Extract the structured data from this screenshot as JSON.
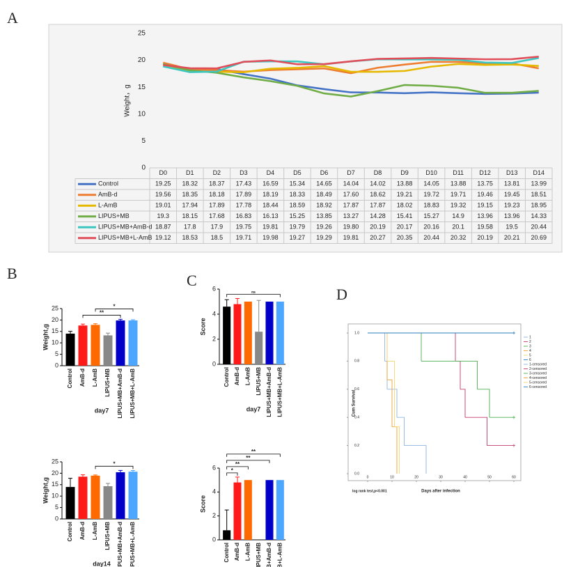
{
  "chart_data": [
    {
      "type": "line",
      "panel": "A",
      "ylabel": "Weight，g",
      "categories": [
        "D0",
        "D1",
        "D2",
        "D3",
        "D4",
        "D5",
        "D6",
        "D7",
        "D8",
        "D9",
        "D10",
        "D11",
        "D12",
        "D13",
        "D14"
      ],
      "ylim": [
        0,
        25
      ],
      "yticks": [
        0,
        5,
        10,
        15,
        20,
        25
      ],
      "grid": false,
      "series": [
        {
          "name": "Control",
          "color": "#4472c4",
          "values": [
            19.25,
            18.32,
            18.37,
            17.43,
            16.59,
            15.34,
            14.65,
            14.04,
            14.02,
            13.88,
            14.05,
            13.88,
            13.75,
            13.81,
            13.99
          ]
        },
        {
          "name": "AmB-d",
          "color": "#ed7d31",
          "values": [
            19.56,
            18.35,
            18.18,
            17.89,
            18.19,
            18.33,
            18.49,
            17.6,
            18.62,
            19.21,
            19.72,
            19.71,
            19.46,
            19.45,
            18.51
          ],
          "value_labels": [
            "19.56",
            "18.35",
            "18.18",
            "17.89",
            "18.19",
            "18.33",
            "18.49",
            "17.60",
            "18.62",
            "19.21",
            "19.72",
            "19.71",
            "19.46",
            "19.45",
            "18.51"
          ]
        },
        {
          "name": "L-AmB",
          "color": "#e6b800",
          "values": [
            19.01,
            17.94,
            17.89,
            17.78,
            18.44,
            18.59,
            18.92,
            17.87,
            17.87,
            18.02,
            18.83,
            19.32,
            19.15,
            19.23,
            18.95
          ]
        },
        {
          "name": "LIPUS+MB",
          "color": "#70ad47",
          "values": [
            19.3,
            18.15,
            17.68,
            16.83,
            16.13,
            15.25,
            13.85,
            13.27,
            14.28,
            15.41,
            15.27,
            14.9,
            13.96,
            13.96,
            14.33
          ]
        },
        {
          "name": "LIPUS+MB+AmB-d",
          "color": "#3cc6c0",
          "values": [
            18.87,
            17.8,
            17.9,
            19.75,
            19.81,
            19.79,
            19.26,
            19.8,
            20.19,
            20.17,
            20.16,
            20.1,
            19.58,
            19.5,
            20.44
          ],
          "value_labels": [
            "18.87",
            "17.8",
            "17.9",
            "19.75",
            "19.81",
            "19.79",
            "19.26",
            "19.80",
            "20.19",
            "20.17",
            "20.16",
            "20.1",
            "19.58",
            "19.5",
            "20.44"
          ]
        },
        {
          "name": "LIPUS+MB+L-AmB",
          "color": "#e04e5a",
          "values": [
            19.12,
            18.53,
            18.5,
            19.71,
            19.98,
            19.27,
            19.29,
            19.81,
            20.27,
            20.35,
            20.44,
            20.32,
            20.19,
            20.21,
            20.69
          ]
        }
      ]
    },
    {
      "type": "bar",
      "panel": "B",
      "title": "day7",
      "ylabel": "Weight,g",
      "categories": [
        "Control",
        "AmB-d",
        "L-AmB",
        "LIPUS+MB",
        "LIPUS+MB+AmB-d",
        "LIPUS+MB+L-AmB"
      ],
      "values": [
        14.04,
        17.6,
        17.87,
        13.27,
        19.8,
        19.81
      ],
      "errors": [
        1.0,
        0.6,
        0.5,
        1.0,
        0.5,
        0.3
      ],
      "colors": [
        "#000000",
        "#ff1a1a",
        "#ff6a00",
        "#888888",
        "#0000c8",
        "#4da6ff"
      ],
      "ylim": [
        0,
        25
      ],
      "yticks": [
        0,
        5,
        10,
        15,
        20,
        25
      ],
      "annotations": [
        {
          "text": "**",
          "from": "AmB-d",
          "to": "LIPUS+MB+AmB-d"
        },
        {
          "text": "*",
          "from": "L-AmB",
          "to": "LIPUS+MB+L-AmB"
        }
      ]
    },
    {
      "type": "bar",
      "title": "day14",
      "ylabel": "Weight,g",
      "categories": [
        "Control",
        "AmB-d",
        "L-AmB",
        "LIPUS+MB",
        "LIPUS+MB+AmB-d",
        "LIPUS+MB+L-AmB"
      ],
      "values": [
        13.99,
        18.51,
        18.95,
        14.33,
        20.44,
        20.69
      ],
      "errors": [
        3.8,
        0.8,
        0.3,
        1.2,
        0.8,
        0.5
      ],
      "colors": [
        "#000000",
        "#ff1a1a",
        "#ff6a00",
        "#888888",
        "#0000c8",
        "#4da6ff"
      ],
      "ylim": [
        0,
        25
      ],
      "yticks": [
        0,
        5,
        10,
        15,
        20,
        25
      ],
      "annotations": [
        {
          "text": "*",
          "from": "L-AmB",
          "to": "LIPUS+MB+L-AmB"
        }
      ]
    },
    {
      "type": "bar",
      "panel": "C",
      "title": "day7",
      "ylabel": "Score",
      "categories": [
        "Control",
        "AmB-d",
        "L-AmB",
        "LIPUS+MB",
        "LIPUS+MB+AmB-d",
        "LIPUS+MB+L-AmB"
      ],
      "values": [
        4.6,
        4.8,
        5,
        2.6,
        5,
        5
      ],
      "errors": [
        0.55,
        0.45,
        0,
        2.5,
        0,
        0
      ],
      "colors": [
        "#000000",
        "#ff1a1a",
        "#ff6a00",
        "#888888",
        "#0000c8",
        "#4da6ff"
      ],
      "ylim": [
        0,
        6
      ],
      "yticks": [
        0,
        2,
        4,
        6
      ],
      "annotations": [
        {
          "text": "ns",
          "from": "Control",
          "to": "LIPUS+MB+L-AmB"
        }
      ]
    },
    {
      "type": "bar",
      "title": "day14",
      "ylabel": "Score",
      "categories": [
        "Control",
        "AmB-d",
        "L-AmB",
        "LIPUS+MB",
        "LIPUS+MB+AmB-d",
        "LIPUS+MB+L-AmB"
      ],
      "values": [
        0.8,
        4.8,
        5,
        0,
        5,
        5
      ],
      "errors": [
        1.7,
        0.45,
        0,
        0,
        0,
        0
      ],
      "colors": [
        "#000000",
        "#ff1a1a",
        "#ff6a00",
        "#888888",
        "#0000c8",
        "#4da6ff"
      ],
      "ylim": [
        0,
        6
      ],
      "yticks": [
        0,
        2,
        4,
        6
      ],
      "annotations": [
        {
          "text": "*",
          "from": "Control",
          "to": "AmB-d"
        },
        {
          "text": "**",
          "from": "Control",
          "to": "L-AmB"
        },
        {
          "text": "**",
          "from": "Control",
          "to": "LIPUS+MB+AmB-d"
        },
        {
          "text": "**",
          "from": "Control",
          "to": "LIPUS+MB+L-AmB"
        }
      ]
    },
    {
      "type": "survival",
      "panel": "D",
      "xlabel": "Days after infection",
      "ylabel": "Cum Survival",
      "annotation": "log rank test,p<0.001",
      "xlim": [
        0,
        60
      ],
      "xticks": [
        0,
        10,
        20,
        30,
        40,
        50,
        60
      ],
      "ylim": [
        0,
        1
      ],
      "yticks": [
        {
          "value": 0,
          "label": "0.0"
        },
        0.2,
        0.4,
        0.6,
        0.8,
        {
          "value": 1,
          "label": "1.0"
        }
      ],
      "series": [
        {
          "name": "1",
          "color": "#8fb4e3",
          "x": [
            0,
            7,
            8,
            12,
            15,
            24
          ],
          "values": [
            1,
            0.8,
            0.6,
            0.4,
            0.2,
            0
          ]
        },
        {
          "name": "2",
          "color": "#c0396b",
          "x": [
            0,
            36,
            38,
            40,
            49,
            60
          ],
          "values": [
            1,
            0.8,
            0.6,
            0.4,
            0.2,
            0.2
          ]
        },
        {
          "name": "3",
          "color": "#4caf50",
          "x": [
            0,
            22,
            45,
            50,
            60
          ],
          "values": [
            1,
            0.8,
            0.6,
            0.4,
            0.4
          ]
        },
        {
          "name": "4",
          "color": "#f0a030",
          "x": [
            0,
            8,
            10,
            12
          ],
          "values": [
            1,
            0.667,
            0.333,
            0
          ]
        },
        {
          "name": "5",
          "color": "#f5d76e",
          "x": [
            0,
            8,
            11,
            13
          ],
          "values": [
            1,
            0.8,
            0.333,
            0
          ]
        },
        {
          "name": "6",
          "color": "#2b7bb9",
          "x": [
            0,
            60
          ],
          "values": [
            1,
            1
          ]
        }
      ],
      "censored": [
        {
          "name": "1-censored",
          "color": "#8fb4e3",
          "x": [],
          "values": []
        },
        {
          "name": "2-censored",
          "color": "#c0396b",
          "x": [
            60
          ],
          "values": [
            0.2
          ]
        },
        {
          "name": "3-censored",
          "color": "#4caf50",
          "x": [
            60
          ],
          "values": [
            0.4
          ]
        },
        {
          "name": "4-censored",
          "color": "#f0a030",
          "x": [],
          "values": []
        },
        {
          "name": "5-censored",
          "color": "#f5d76e",
          "x": [],
          "values": []
        },
        {
          "name": "6-censored",
          "color": "#2b7bb9",
          "x": [
            60
          ],
          "values": [
            1
          ]
        }
      ]
    }
  ]
}
